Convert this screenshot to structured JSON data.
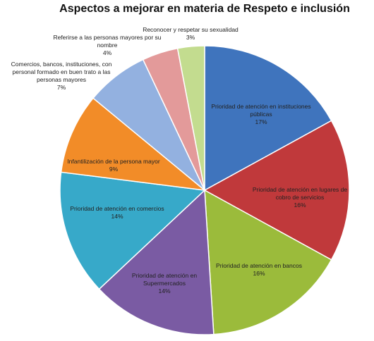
{
  "chart_data": {
    "type": "pie",
    "title": "Aspectos a mejorar en materia de Respeto e inclusión",
    "categories": [
      "Prioridad de atención en instituciones públicas",
      "Prioridad de atención en lugares de cobro de servicios",
      "Prioridad de atención en bancos",
      "Prioridad de atención en Supermercados",
      "Prioridad de atención en comercios",
      "Infantilización de la persona mayor",
      "Comercios, bancos, instituciones, con personal formado en buen trato a las personas mayores",
      "Referirse a las personas mayores por su nombre",
      "Reconocer y respetar su sexualidad"
    ],
    "values": [
      17,
      16,
      16,
      14,
      14,
      9,
      7,
      4,
      3
    ],
    "value_labels": [
      "17%",
      "16%",
      "16%",
      "14%",
      "14%",
      "9%",
      "7%",
      "4%",
      "3%"
    ],
    "colors": [
      "#3f74bd",
      "#c0393b",
      "#9bbb3b",
      "#7a5ba3",
      "#37a9c9",
      "#f28c28",
      "#93b1e0",
      "#e39a9a",
      "#c3dc8f"
    ]
  }
}
